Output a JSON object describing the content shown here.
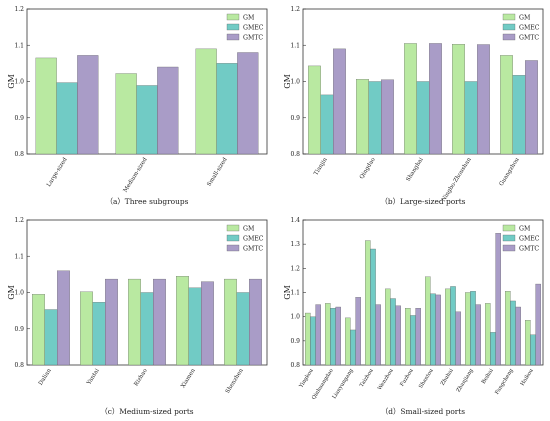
{
  "figure": {
    "series_colors": {
      "GM": "#b9e9a1",
      "GMEC": "#71cbc5",
      "GMTC": "#a99cc7"
    },
    "edge_color": "#555555"
  },
  "chart_data": [
    {
      "type": "bar",
      "caption": "（a）Three subgroups",
      "ylabel": "GM",
      "ylim": [
        0.8,
        1.2
      ],
      "yticks": [
        "0.8",
        "0.9",
        "1.0",
        "1.1",
        "1.2"
      ],
      "legend_position": "top-right",
      "categories": [
        "Large-sized",
        "Medium-sized",
        "Small-sized"
      ],
      "series": [
        {
          "name": "GM",
          "values": [
            1.065,
            1.022,
            1.09
          ]
        },
        {
          "name": "GMEC",
          "values": [
            0.997,
            0.989,
            1.05
          ]
        },
        {
          "name": "GMTC",
          "values": [
            1.072,
            1.04,
            1.08
          ]
        }
      ]
    },
    {
      "type": "bar",
      "caption": "（b）Large-sized ports",
      "ylabel": "GM",
      "ylim": [
        0.8,
        1.2
      ],
      "yticks": [
        "0.8",
        "0.9",
        "1.0",
        "1.1",
        "1.2"
      ],
      "legend_position": "top-right",
      "categories": [
        "Tianjin",
        "Qingdao",
        "Shanghai",
        "Ningbo-Zhoushan",
        "Guangzhou"
      ],
      "series": [
        {
          "name": "GM",
          "values": [
            1.043,
            1.006,
            1.105,
            1.103,
            1.072
          ]
        },
        {
          "name": "GMEC",
          "values": [
            0.963,
            1.0,
            1.0,
            1.0,
            1.017
          ]
        },
        {
          "name": "GMTC",
          "values": [
            1.09,
            1.005,
            1.105,
            1.102,
            1.058
          ]
        }
      ]
    },
    {
      "type": "bar",
      "caption": "（c）Medium-sized ports",
      "ylabel": "GM",
      "ylim": [
        0.8,
        1.2
      ],
      "yticks": [
        "0.8",
        "0.9",
        "1.0",
        "1.1",
        "1.2"
      ],
      "legend_position": "top-right",
      "categories": [
        "Dalian",
        "Yantai",
        "Rizhao",
        "Xiamen",
        "Shenzhen"
      ],
      "series": [
        {
          "name": "GM",
          "values": [
            0.995,
            1.002,
            1.037,
            1.045,
            1.037
          ]
        },
        {
          "name": "GMEC",
          "values": [
            0.953,
            0.973,
            1.0,
            1.013,
            1.0
          ]
        },
        {
          "name": "GMTC",
          "values": [
            1.06,
            1.037,
            1.037,
            1.03,
            1.037
          ]
        }
      ]
    },
    {
      "type": "bar",
      "caption": "（d）Small-sized ports",
      "ylabel": "GM",
      "ylim": [
        0.8,
        1.4
      ],
      "yticks": [
        "0.8",
        "0.9",
        "1.0",
        "1.1",
        "1.2",
        "1.3",
        "1.4"
      ],
      "legend_position": "top-right",
      "categories": [
        "Yingkou",
        "Qinhuangdao",
        "Lianyungang",
        "Taizhou",
        "Wenzhou",
        "Fuzhou",
        "Shantou",
        "Zhuhai",
        "Zhanjiang",
        "Beihai",
        "Fangcheng",
        "Haikou"
      ],
      "series": [
        {
          "name": "GM",
          "values": [
            1.015,
            1.055,
            0.995,
            1.315,
            1.115,
            1.035,
            1.165,
            1.115,
            1.1,
            1.055,
            1.105,
            0.985
          ]
        },
        {
          "name": "GMEC",
          "values": [
            1.0,
            1.035,
            0.945,
            1.28,
            1.075,
            1.005,
            1.095,
            1.125,
            1.105,
            0.935,
            1.065,
            0.925
          ]
        },
        {
          "name": "GMTC",
          "values": [
            1.05,
            1.04,
            1.08,
            1.05,
            1.045,
            1.035,
            1.09,
            1.02,
            1.05,
            1.345,
            1.04,
            1.135
          ]
        }
      ]
    }
  ]
}
